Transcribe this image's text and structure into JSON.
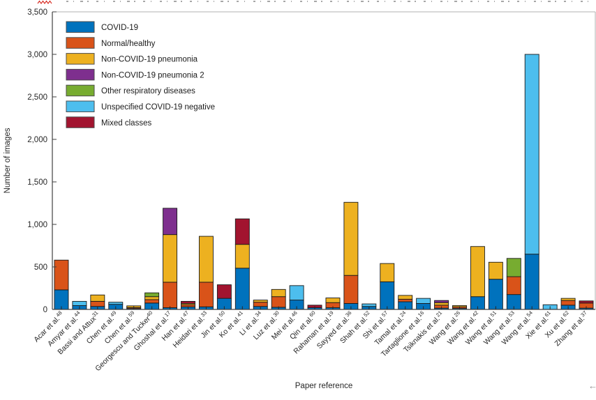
{
  "figure": {
    "top_edge_artifact": "cropped-text-fragments",
    "squiggle_color": "#d9342b",
    "cursor_glyph": "←",
    "axis_color_dark": "#3f3f3f",
    "axis_color_light": "#b0b0b0",
    "bar_edge_color": "#1a1a1a"
  },
  "chart_data": {
    "type": "bar",
    "stacked": true,
    "title": "",
    "xlabel": "Paper reference",
    "ylabel": "Number of images",
    "ylim": [
      0,
      3500
    ],
    "ytick_values": [
      0,
      500,
      1000,
      1500,
      2000,
      2500,
      3000,
      3500
    ],
    "ytick_labels": [
      "0",
      "500",
      "1,000",
      "1,500",
      "2,000",
      "2,500",
      "3,000",
      "3,500"
    ],
    "grid": false,
    "legend_position": "top-left-inside",
    "categories": [
      {
        "label": "Acar et al.",
        "ref": "48"
      },
      {
        "label": "Amyar et al.",
        "ref": "44"
      },
      {
        "label": "Bassi and Attux",
        "ref": "31"
      },
      {
        "label": "Chen et al.",
        "ref": "49"
      },
      {
        "label": "Chen et al.",
        "ref": "59"
      },
      {
        "label": "Georgescu and Tucker",
        "ref": "40"
      },
      {
        "label": "Ghoshal et al.",
        "ref": "17"
      },
      {
        "label": "Han et al.",
        "ref": "47"
      },
      {
        "label": "Heidari et al.",
        "ref": "33"
      },
      {
        "label": "Jin et al.",
        "ref": "50"
      },
      {
        "label": "Ko et al.",
        "ref": "41"
      },
      {
        "label": "Li et al.",
        "ref": "34"
      },
      {
        "label": "Luz et al.",
        "ref": "30"
      },
      {
        "label": "Mei et al.",
        "ref": "46"
      },
      {
        "label": "Qin et al.",
        "ref": "60"
      },
      {
        "label": "Rahaman et al.",
        "ref": "19"
      },
      {
        "label": "Sayyed et al.",
        "ref": "36"
      },
      {
        "label": "Shah et al.",
        "ref": "52"
      },
      {
        "label": "Shi et al.",
        "ref": "57"
      },
      {
        "label": "Tamal et al.",
        "ref": "24"
      },
      {
        "label": "Tartaglione et al.",
        "ref": "16"
      },
      {
        "label": "Tsiknakis et al.",
        "ref": "21"
      },
      {
        "label": "Wang et al.",
        "ref": "26"
      },
      {
        "label": "Wang et al.",
        "ref": "42"
      },
      {
        "label": "Wang et al.",
        "ref": "51"
      },
      {
        "label": "Wang et al.",
        "ref": "53"
      },
      {
        "label": "Wang et al.",
        "ref": "54"
      },
      {
        "label": "Xie et al.",
        "ref": "61"
      },
      {
        "label": "Xu et al.",
        "ref": "62"
      },
      {
        "label": "Zhang et al.",
        "ref": "37"
      }
    ],
    "series": [
      {
        "name": "COVID-19",
        "color": "#0072BD",
        "values": [
          230,
          45,
          35,
          60,
          10,
          75,
          20,
          30,
          30,
          130,
          485,
          35,
          25,
          110,
          20,
          20,
          70,
          35,
          325,
          90,
          70,
          15,
          12,
          150,
          355,
          175,
          650,
          0,
          50,
          15
        ]
      },
      {
        "name": "Normal/healthy",
        "color": "#D95319",
        "values": [
          350,
          0,
          60,
          0,
          12,
          40,
          300,
          25,
          290,
          0,
          0,
          50,
          125,
          0,
          0,
          60,
          330,
          0,
          0,
          30,
          0,
          35,
          18,
          0,
          0,
          210,
          0,
          0,
          55,
          60
        ]
      },
      {
        "name": "Non-COVID-19 pneumonia",
        "color": "#EDB120",
        "values": [
          0,
          0,
          75,
          0,
          20,
          35,
          560,
          15,
          540,
          0,
          280,
          25,
          85,
          0,
          0,
          55,
          860,
          0,
          215,
          45,
          0,
          30,
          15,
          590,
          200,
          0,
          0,
          0,
          25,
          0
        ]
      },
      {
        "name": "Non-COVID-19 pneumonia 2",
        "color": "#7E2F8E",
        "values": [
          0,
          0,
          0,
          0,
          0,
          0,
          310,
          0,
          0,
          0,
          0,
          0,
          0,
          0,
          0,
          0,
          0,
          0,
          0,
          0,
          0,
          25,
          0,
          0,
          0,
          0,
          0,
          0,
          0,
          0
        ]
      },
      {
        "name": "Other respiratory diseases",
        "color": "#77AC30",
        "values": [
          0,
          0,
          0,
          0,
          0,
          45,
          0,
          0,
          0,
          0,
          0,
          0,
          0,
          0,
          0,
          0,
          0,
          0,
          0,
          0,
          0,
          0,
          0,
          0,
          0,
          215,
          0,
          0,
          0,
          0
        ]
      },
      {
        "name": "Unspecified COVID-19 negative",
        "color": "#4DBEEE",
        "values": [
          0,
          50,
          0,
          25,
          0,
          0,
          0,
          0,
          0,
          0,
          0,
          0,
          0,
          170,
          0,
          0,
          0,
          30,
          0,
          0,
          60,
          0,
          0,
          0,
          0,
          0,
          2350,
          55,
          0,
          0
        ]
      },
      {
        "name": "Mixed classes",
        "color": "#A2142F",
        "values": [
          0,
          0,
          0,
          0,
          0,
          0,
          0,
          25,
          0,
          160,
          300,
          0,
          0,
          0,
          30,
          0,
          0,
          0,
          0,
          0,
          0,
          0,
          0,
          0,
          0,
          0,
          0,
          0,
          0,
          25
        ]
      }
    ]
  }
}
